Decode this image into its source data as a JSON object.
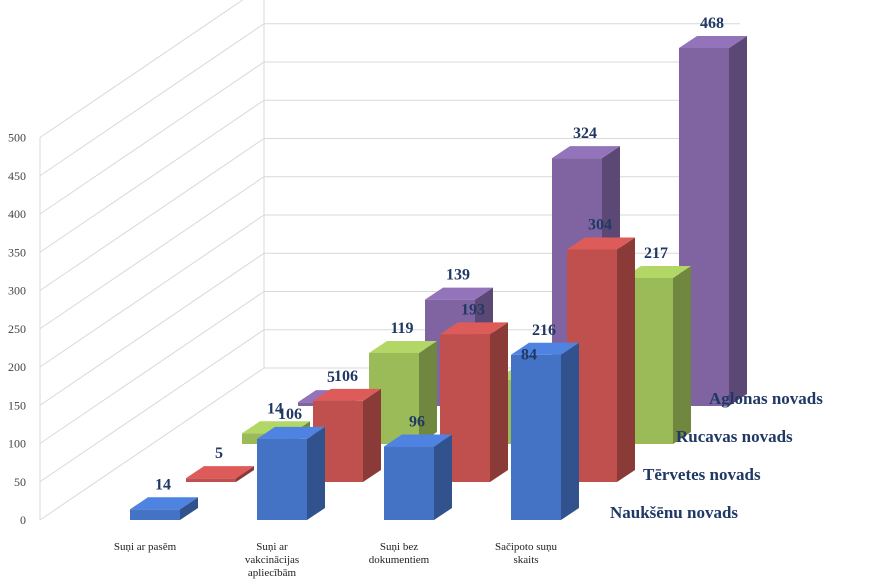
{
  "chart_data": {
    "type": "bar",
    "subtype": "3d-clustered-column",
    "categories": [
      [
        "Suņi ar pasēm"
      ],
      [
        "Suņi ar",
        "vakcinācijas",
        "apliecībām"
      ],
      [
        "Suņi bez",
        "dokumentiem"
      ],
      [
        "Sačipoto suņu",
        "skaits"
      ]
    ],
    "series": [
      {
        "name": "Naukšēnu novads",
        "values": [
          14,
          106,
          96,
          216
        ],
        "color": "#4472c4"
      },
      {
        "name": "Tērvetes novads",
        "values": [
          5,
          106,
          193,
          304
        ],
        "color": "#c0504d"
      },
      {
        "name": "Rucavas novads",
        "values": [
          14,
          119,
          84,
          217
        ],
        "color": "#9bbb59"
      },
      {
        "name": "Aglonas novads",
        "values": [
          5,
          139,
          324,
          468
        ],
        "color": "#8064a2"
      }
    ],
    "ylim": [
      0,
      500
    ],
    "yticks": [
      0,
      50,
      100,
      150,
      200,
      250,
      300,
      350,
      400,
      450,
      500
    ],
    "grid": true,
    "legend": "series labels along depth axis"
  }
}
